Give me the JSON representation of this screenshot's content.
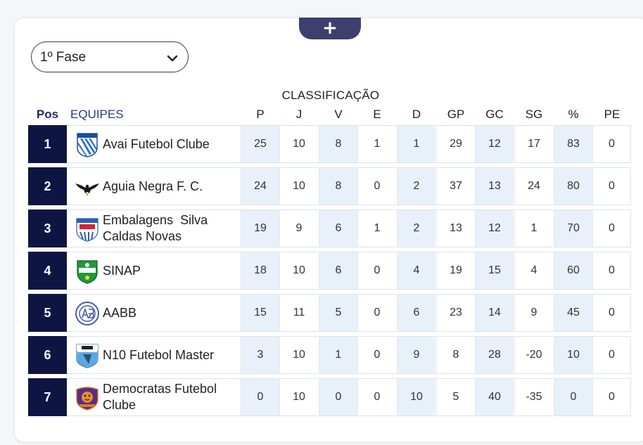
{
  "plus_button": {
    "label": "+"
  },
  "phase_select": {
    "value": "1º Fase"
  },
  "table": {
    "title": "CLASSIFICAÇÃO",
    "pos_header": "Pos",
    "teams_header": "EQUIPES",
    "stat_headers": [
      "P",
      "J",
      "V",
      "E",
      "D",
      "GP",
      "GC",
      "SG",
      "%",
      "PE"
    ],
    "rows": [
      {
        "pos": "1",
        "team": "Avai Futebol Clube",
        "logo": "avai-fc-shield-icon",
        "stats": [
          "25",
          "10",
          "8",
          "1",
          "1",
          "29",
          "12",
          "17",
          "83",
          "0"
        ]
      },
      {
        "pos": "2",
        "team": "Aguia Negra F. C.",
        "logo": "black-eagle-icon",
        "stats": [
          "24",
          "10",
          "8",
          "0",
          "2",
          "37",
          "13",
          "24",
          "80",
          "0"
        ]
      },
      {
        "pos": "3",
        "team": "Embalagens  Silva\nCaldas Novas",
        "logo": "embalagens-shield-icon",
        "stats": [
          "19",
          "9",
          "6",
          "1",
          "2",
          "13",
          "12",
          "1",
          "70",
          "0"
        ]
      },
      {
        "pos": "4",
        "team": "SINAP",
        "logo": "sinap-shield-icon",
        "stats": [
          "18",
          "10",
          "6",
          "0",
          "4",
          "19",
          "15",
          "4",
          "60",
          "0"
        ]
      },
      {
        "pos": "5",
        "team": "AABB",
        "logo": "aabb-circle-icon",
        "stats": [
          "15",
          "11",
          "5",
          "0",
          "6",
          "23",
          "14",
          "9",
          "45",
          "0"
        ]
      },
      {
        "pos": "6",
        "team": "N10 Futebol Master",
        "logo": "n10-shield-icon",
        "stats": [
          "3",
          "10",
          "1",
          "0",
          "9",
          "8",
          "28",
          "-20",
          "10",
          "0"
        ]
      },
      {
        "pos": "7",
        "team": "Democratas Futebol\nClube",
        "logo": "democratas-crest-icon",
        "stats": [
          "0",
          "10",
          "0",
          "0",
          "10",
          "5",
          "40",
          "-35",
          "0",
          "0"
        ]
      }
    ]
  },
  "colors": {
    "position_cell": "#0f1543",
    "plus_tab": "#3d3f6e",
    "shaded_column": "#e8f1f9",
    "teams_header": "#2a3a8a"
  }
}
